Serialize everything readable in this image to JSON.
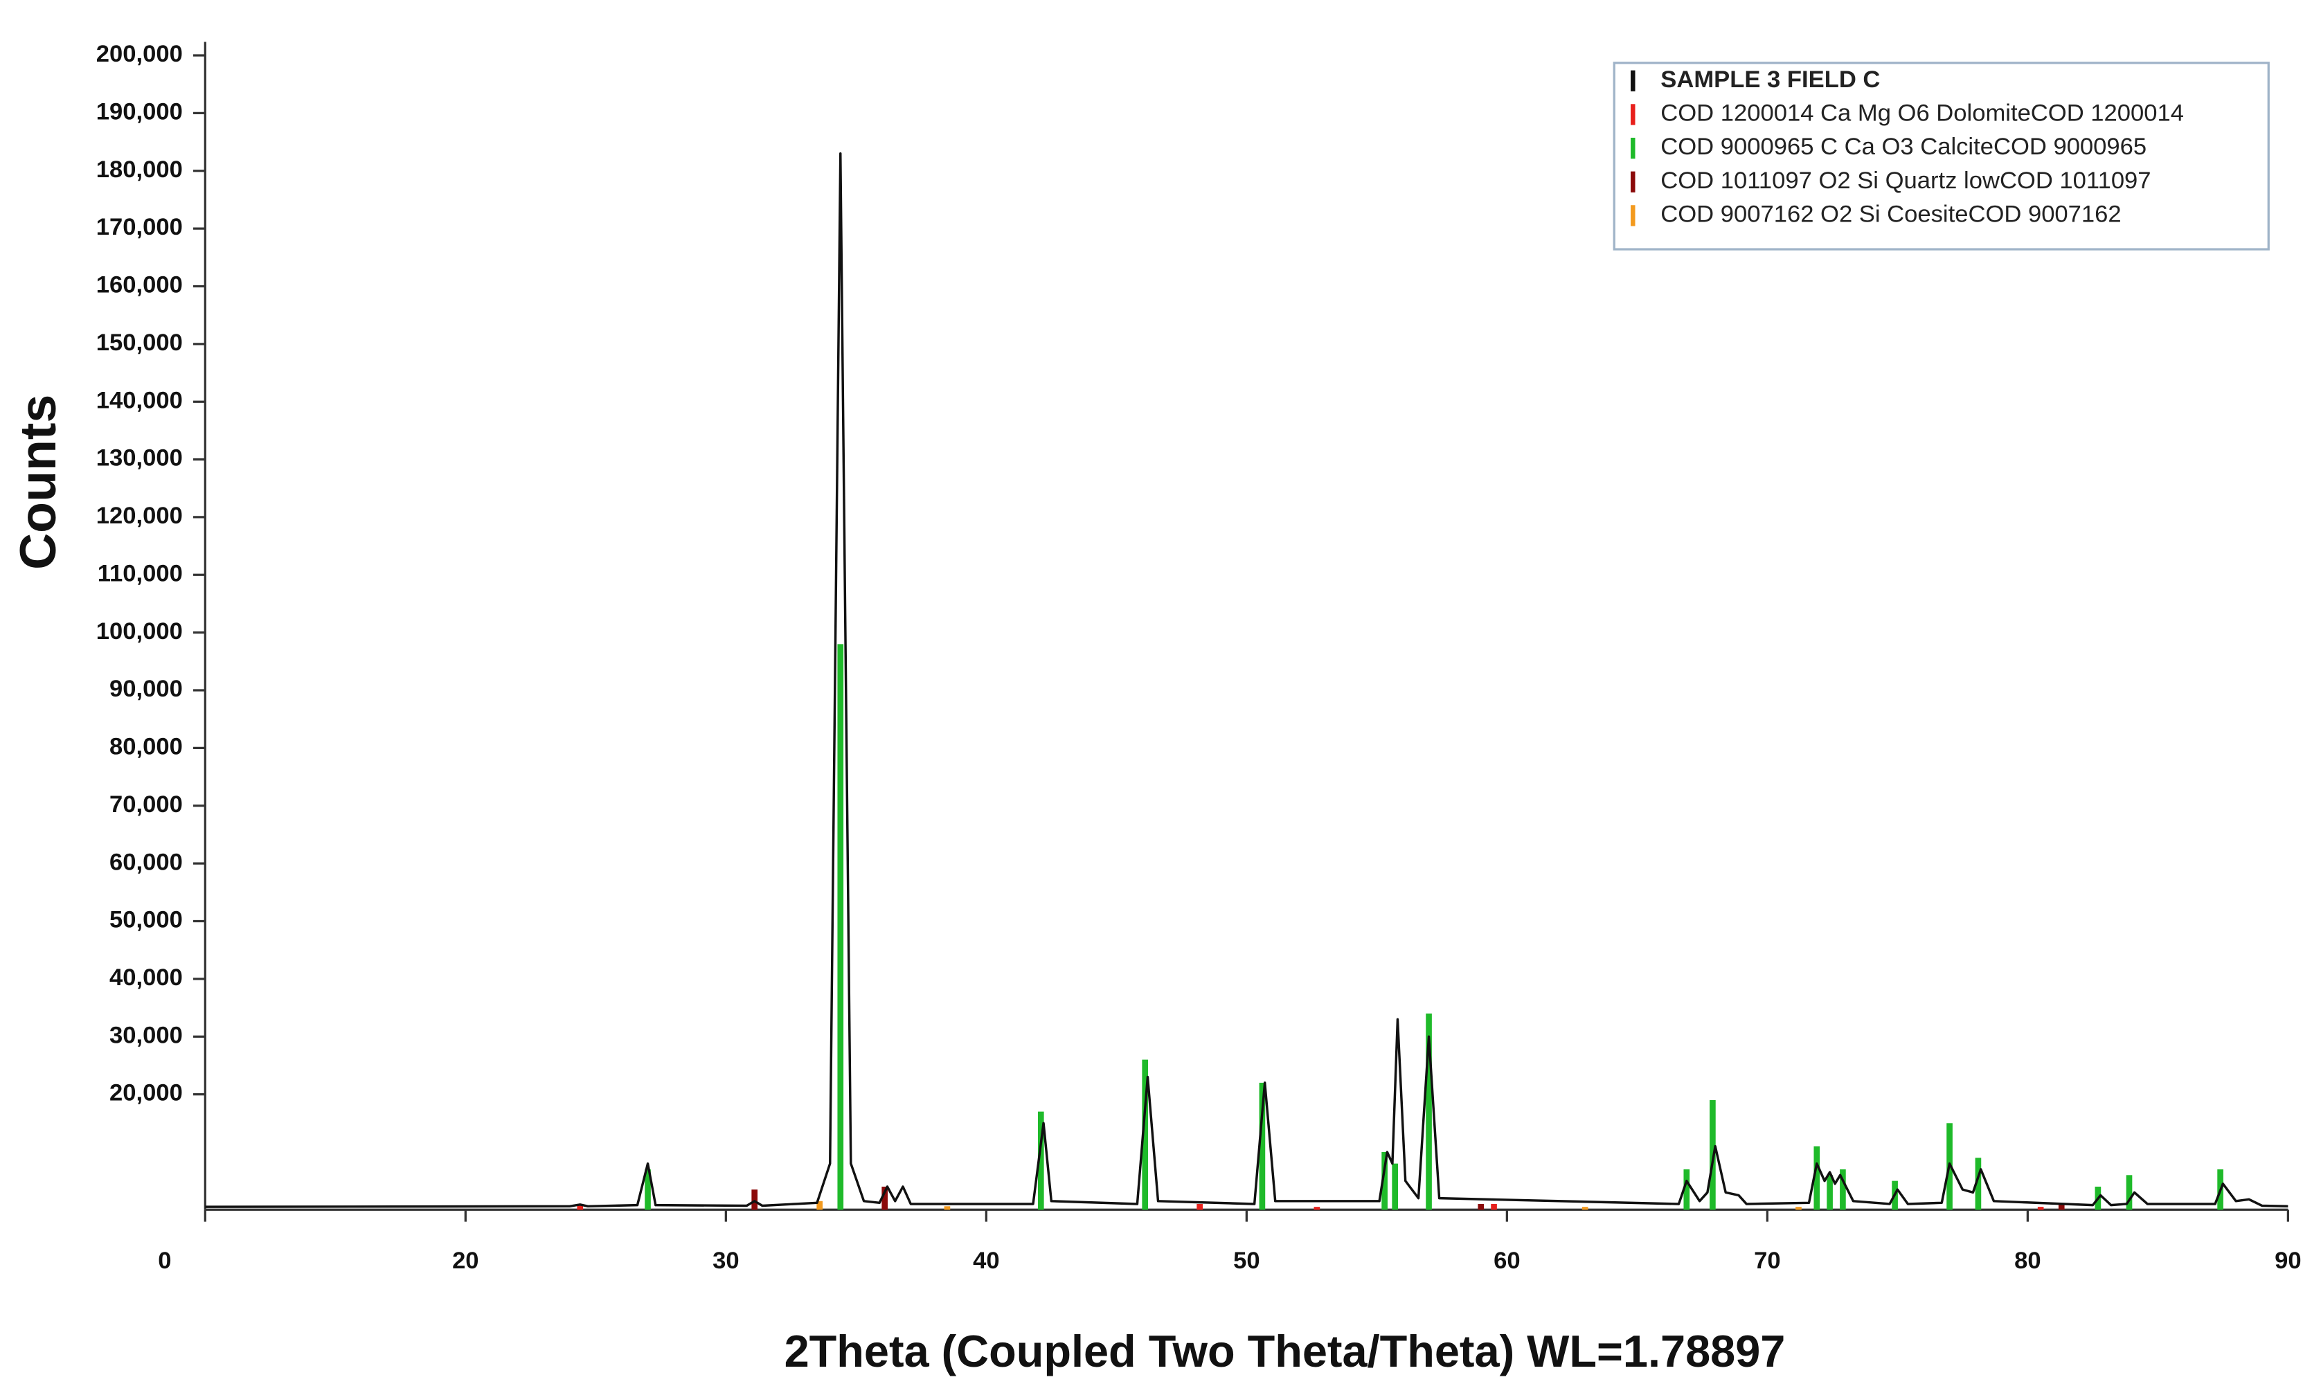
{
  "chart_data": {
    "type": "line",
    "xlabel": "2Theta (Coupled Two Theta/Theta) WL=1.78897",
    "ylabel": "Counts",
    "xlim": [
      10,
      90
    ],
    "ylim": [
      0,
      200000
    ],
    "xticks": [
      {
        "value": 10,
        "label": "0"
      },
      20,
      30,
      40,
      50,
      60,
      70,
      80,
      90
    ],
    "yticks": [
      {
        "value": 20000,
        "label": "20,000"
      },
      {
        "value": 30000,
        "label": "30,000"
      },
      {
        "value": 40000,
        "label": "40,000"
      },
      {
        "value": 50000,
        "label": "50,000"
      },
      {
        "value": 60000,
        "label": "60,000"
      },
      {
        "value": 70000,
        "label": "70,000"
      },
      {
        "value": 80000,
        "label": "80,000"
      },
      {
        "value": 90000,
        "label": "90,000"
      },
      {
        "value": 100000,
        "label": "100,000"
      },
      {
        "value": 110000,
        "label": "110,000"
      },
      {
        "value": 120000,
        "label": "120,000"
      },
      {
        "value": 130000,
        "label": "130,000"
      },
      {
        "value": 140000,
        "label": "140,000"
      },
      {
        "value": 150000,
        "label": "150,000"
      },
      {
        "value": 160000,
        "label": "160,000"
      },
      {
        "value": 170000,
        "label": "170,000"
      },
      {
        "value": 180000,
        "label": "180,000"
      },
      {
        "value": 190000,
        "label": "190,000"
      },
      {
        "value": 200000,
        "label": "200,000"
      }
    ],
    "legend": "upper right",
    "series": [
      {
        "name": "SAMPLE 3 FIELD C",
        "color": "#111111",
        "style": "line",
        "x": [
          10,
          24,
          24.4,
          24.7,
          26.6,
          27.0,
          27.3,
          30.8,
          31.1,
          31.4,
          33.5,
          34.0,
          34.4,
          34.8,
          35.3,
          35.9,
          36.2,
          36.5,
          36.8,
          37.1,
          41.8,
          42.2,
          42.5,
          45.8,
          46.2,
          46.6,
          50.3,
          50.7,
          51.1,
          55.1,
          55.4,
          55.6,
          55.8,
          56.1,
          56.6,
          57.0,
          57.4,
          66.6,
          66.9,
          67.4,
          67.7,
          68.0,
          68.4,
          68.9,
          69.2,
          71.6,
          71.9,
          72.2,
          72.4,
          72.6,
          72.8,
          73.3,
          74.7,
          75.0,
          75.4,
          76.7,
          77.0,
          77.5,
          77.9,
          78.2,
          78.7,
          82.5,
          82.8,
          83.2,
          83.8,
          84.1,
          84.6,
          87.2,
          87.5,
          88.0,
          88.5,
          89.0,
          90
        ],
        "values": [
          500,
          600,
          900,
          600,
          800,
          8000,
          800,
          700,
          1500,
          700,
          1200,
          8000,
          183000,
          8000,
          1500,
          1200,
          4000,
          1500,
          4000,
          1000,
          1000,
          15000,
          1500,
          1000,
          23000,
          1500,
          1000,
          22000,
          1500,
          1500,
          10000,
          8000,
          33000,
          5000,
          2000,
          30000,
          2000,
          1000,
          5000,
          1500,
          3000,
          11000,
          3000,
          2500,
          1000,
          1200,
          8000,
          5000,
          6500,
          4500,
          6000,
          1500,
          1000,
          3500,
          1000,
          1200,
          8000,
          3500,
          3000,
          7000,
          1500,
          800,
          2500,
          800,
          1000,
          3000,
          1000,
          1000,
          4500,
          1500,
          1800,
          700,
          600
        ]
      },
      {
        "name": "COD 1200014 Ca Mg O6 DolomiteCOD 1200014",
        "color": "#e8201c",
        "style": "sticks",
        "x": [
          24.4,
          48.2,
          52.7,
          59.5,
          80.5
        ],
        "values": [
          1000,
          1000,
          500,
          1000,
          500
        ]
      },
      {
        "name": "COD 9000965 C Ca O3 CalciteCOD 9000965",
        "color": "#1fba2a",
        "style": "sticks",
        "x": [
          27.0,
          34.4,
          42.1,
          46.1,
          50.6,
          55.3,
          55.7,
          57.0,
          66.9,
          67.9,
          71.9,
          72.4,
          72.9,
          74.9,
          77.0,
          78.1,
          82.7,
          83.9,
          87.4
        ],
        "values": [
          7000,
          98000,
          17000,
          26000,
          22000,
          10000,
          8000,
          34000,
          7000,
          19000,
          11000,
          6000,
          7000,
          5000,
          15000,
          9000,
          4000,
          6000,
          7000
        ]
      },
      {
        "name": "COD 1011097 O2 Si Quartz lowCOD 1011097",
        "color": "#8b0a0a",
        "style": "sticks",
        "x": [
          31.1,
          36.1,
          59.0,
          81.3
        ],
        "values": [
          3500,
          4000,
          1000,
          1000
        ]
      },
      {
        "name": "COD 9007162 O2 Si CoesiteCOD 9007162",
        "color": "#f39a1e",
        "style": "sticks",
        "x": [
          33.6,
          38.5,
          63.0,
          71.2
        ],
        "values": [
          1500,
          600,
          500,
          500
        ]
      }
    ]
  }
}
